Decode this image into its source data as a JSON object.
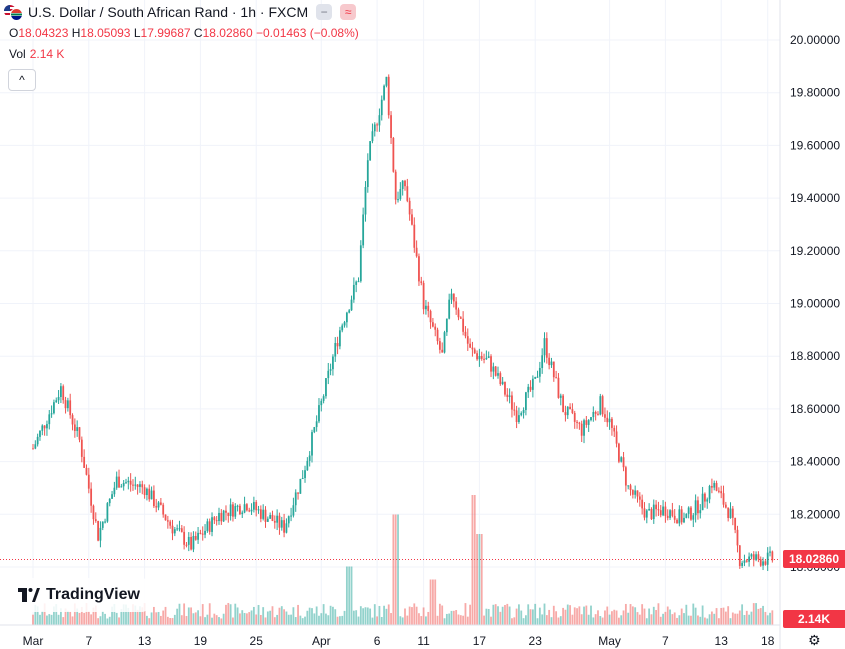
{
  "header": {
    "title": "U.S. Dollar / South African Rand · 1h · FXCM",
    "open_label": "O",
    "open": "18.04323",
    "high_label": "H",
    "high": "18.05093",
    "low_label": "L",
    "low": "17.99687",
    "close_label": "C",
    "close": "18.02860",
    "change": "−0.01463 (−0.08%)",
    "vol_label": "Vol",
    "vol_value": "2.14 K",
    "collapse_glyph": "^",
    "minus_glyph": "−",
    "wave_glyph": "≈"
  },
  "brand": {
    "name": "TradingView"
  },
  "badges": {
    "last_price": "18.02860",
    "last_volume": "2.14K"
  },
  "colors": {
    "up": "#26a69a",
    "down": "#ef5350",
    "price_tag": "#f23645",
    "grid": "#f0f3fa"
  },
  "chart_data": {
    "type": "candlestick",
    "symbol": "USD/ZAR",
    "interval": "1h",
    "y_ticks": [
      "20.00000",
      "19.80000",
      "19.60000",
      "19.40000",
      "19.20000",
      "19.00000",
      "18.80000",
      "18.60000",
      "18.40000",
      "18.20000",
      "18.00000"
    ],
    "x_ticks": [
      "Mar",
      "7",
      "13",
      "19",
      "25",
      "Apr",
      "6",
      "11",
      "17",
      "23",
      "May",
      "7",
      "13",
      "18"
    ],
    "ylim": [
      17.9,
      20.05
    ],
    "price_path": [
      {
        "day": 0,
        "price": 18.45
      },
      {
        "day": 3,
        "price": 18.68
      },
      {
        "day": 5,
        "price": 18.48
      },
      {
        "day": 7,
        "price": 18.12
      },
      {
        "day": 9,
        "price": 18.33
      },
      {
        "day": 12,
        "price": 18.3
      },
      {
        "day": 15,
        "price": 18.15
      },
      {
        "day": 17,
        "price": 18.08
      },
      {
        "day": 20,
        "price": 18.2
      },
      {
        "day": 23,
        "price": 18.24
      },
      {
        "day": 27,
        "price": 18.15
      },
      {
        "day": 29,
        "price": 18.35
      },
      {
        "day": 31,
        "price": 18.62
      },
      {
        "day": 33,
        "price": 18.9
      },
      {
        "day": 35,
        "price": 19.1
      },
      {
        "day": 36,
        "price": 19.55
      },
      {
        "day": 38,
        "price": 19.85
      },
      {
        "day": 39,
        "price": 19.4
      },
      {
        "day": 40,
        "price": 19.45
      },
      {
        "day": 42,
        "price": 19.0
      },
      {
        "day": 44,
        "price": 18.8
      },
      {
        "day": 45,
        "price": 19.05
      },
      {
        "day": 47,
        "price": 18.82
      },
      {
        "day": 49,
        "price": 18.78
      },
      {
        "day": 52,
        "price": 18.58
      },
      {
        "day": 54,
        "price": 18.7
      },
      {
        "day": 55,
        "price": 18.85
      },
      {
        "day": 57,
        "price": 18.6
      },
      {
        "day": 59,
        "price": 18.52
      },
      {
        "day": 61,
        "price": 18.62
      },
      {
        "day": 62,
        "price": 18.55
      },
      {
        "day": 64,
        "price": 18.3
      },
      {
        "day": 66,
        "price": 18.2
      },
      {
        "day": 68,
        "price": 18.22
      },
      {
        "day": 70,
        "price": 18.18
      },
      {
        "day": 72,
        "price": 18.25
      },
      {
        "day": 73,
        "price": 18.32
      },
      {
        "day": 75,
        "price": 18.2
      },
      {
        "day": 76,
        "price": 18.03
      }
    ],
    "volume_spikes": [
      {
        "day": 34,
        "volume_pct": 0.45
      },
      {
        "day": 39,
        "volume_pct": 0.85
      },
      {
        "day": 43,
        "volume_pct": 0.35
      },
      {
        "day": 47.5,
        "volume_pct": 1.0
      },
      {
        "day": 48,
        "volume_pct": 0.7
      }
    ]
  }
}
